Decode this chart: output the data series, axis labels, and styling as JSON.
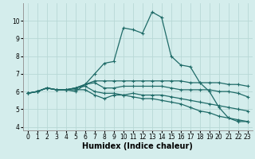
{
  "xlabel": "Humidex (Indice chaleur)",
  "xlim": [
    -0.5,
    23.5
  ],
  "ylim": [
    3.8,
    11.0
  ],
  "background_color": "#d4edec",
  "line_color": "#1f6b68",
  "grid_color": "#b8d8d6",
  "series": [
    [
      5.9,
      6.0,
      6.2,
      6.1,
      6.1,
      6.0,
      6.4,
      7.0,
      7.6,
      7.7,
      9.6,
      9.5,
      9.3,
      10.5,
      10.2,
      8.0,
      7.5,
      7.4,
      6.5,
      6.0,
      5.1,
      4.5,
      4.3,
      4.3
    ],
    [
      5.9,
      6.0,
      6.2,
      6.1,
      6.1,
      6.1,
      6.1,
      5.8,
      5.6,
      5.8,
      5.8,
      5.7,
      5.6,
      5.6,
      5.5,
      5.4,
      5.3,
      5.1,
      4.9,
      4.8,
      4.6,
      4.5,
      4.4,
      4.3
    ],
    [
      5.9,
      6.0,
      6.2,
      6.1,
      6.1,
      6.2,
      6.3,
      6.0,
      5.9,
      5.9,
      5.8,
      5.9,
      5.8,
      5.8,
      5.8,
      5.7,
      5.6,
      5.5,
      5.4,
      5.3,
      5.2,
      5.1,
      5.0,
      4.9
    ],
    [
      5.9,
      6.0,
      6.2,
      6.1,
      6.1,
      6.2,
      6.4,
      6.5,
      6.2,
      6.2,
      6.3,
      6.3,
      6.3,
      6.3,
      6.3,
      6.2,
      6.1,
      6.1,
      6.1,
      6.1,
      6.0,
      6.0,
      5.9,
      5.7
    ],
    [
      5.9,
      6.0,
      6.2,
      6.1,
      6.1,
      6.2,
      6.4,
      6.6,
      6.6,
      6.6,
      6.6,
      6.6,
      6.6,
      6.6,
      6.6,
      6.6,
      6.6,
      6.5,
      6.5,
      6.5,
      6.5,
      6.4,
      6.4,
      6.3
    ]
  ],
  "x_ticks": [
    0,
    1,
    2,
    3,
    4,
    5,
    6,
    7,
    8,
    9,
    10,
    11,
    12,
    13,
    14,
    15,
    16,
    17,
    18,
    19,
    20,
    21,
    22,
    23
  ],
  "y_ticks": [
    4,
    5,
    6,
    7,
    8,
    9,
    10
  ],
  "tick_fontsize": 5.5,
  "label_fontsize": 7.0
}
